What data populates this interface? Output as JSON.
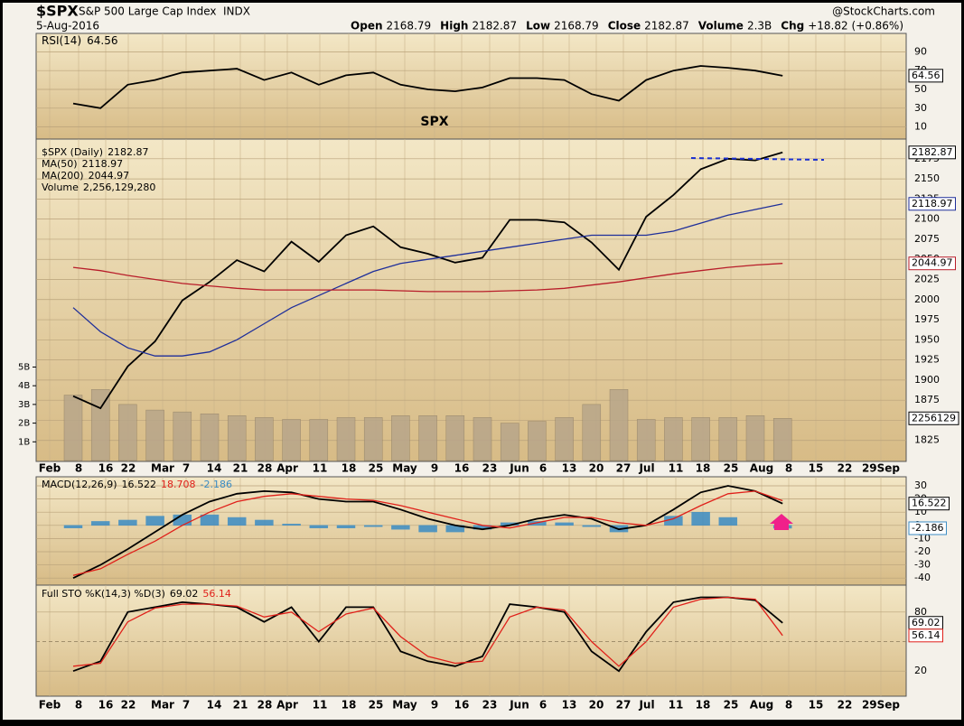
{
  "header": {
    "symbol": "$SPX",
    "name": "S&P 500 Large Cap Index",
    "exchange": "INDX",
    "date": "5-Aug-2016",
    "source": "@StockCharts.com",
    "stats": [
      {
        "label": "Open",
        "value": "2168.79"
      },
      {
        "label": "High",
        "value": "2182.87"
      },
      {
        "label": "Low",
        "value": "2168.79"
      },
      {
        "label": "Close",
        "value": "2182.87"
      },
      {
        "label": "Volume",
        "value": "2.3B"
      },
      {
        "label": "Chg",
        "value": "+18.82 (+0.86%)"
      }
    ]
  },
  "x_axis_labels": [
    "Feb",
    "8",
    "16",
    "22",
    "Mar",
    "7",
    "14",
    "21",
    "28",
    "Apr",
    "11",
    "18",
    "25",
    "May",
    "9",
    "16",
    "23",
    "Jun",
    "6",
    "13",
    "20",
    "27",
    "Jul",
    "11",
    "18",
    "25",
    "Aug",
    "8",
    "15",
    "22",
    "29Sep"
  ],
  "chart_data": [
    {
      "type": "line",
      "annotation": "SPX",
      "ylim": [
        0,
        100
      ],
      "yticks": [
        90,
        70,
        50,
        30,
        10
      ],
      "grid": true,
      "series": [
        {
          "name": "RSI(14)",
          "color": "#000000",
          "values": [
            35,
            30,
            55,
            60,
            68,
            70,
            72,
            60,
            68,
            55,
            65,
            68,
            55,
            50,
            48,
            52,
            62,
            62,
            60,
            45,
            38,
            60,
            70,
            75,
            73,
            70,
            64.56
          ]
        }
      ]
    },
    {
      "type": "line",
      "ylim": [
        1800,
        2195
      ],
      "yticks": [
        2175,
        2150,
        2125,
        2100,
        2075,
        2050,
        2025,
        2000,
        1975,
        1950,
        1925,
        1900,
        1875,
        1850,
        1825
      ],
      "grid": true,
      "y2lim": [
        0,
        17000000000
      ],
      "y2ticks": [
        {
          "value": 5000000000,
          "label": "5B"
        },
        {
          "value": 4000000000,
          "label": "4B"
        },
        {
          "value": 3000000000,
          "label": "3B"
        },
        {
          "value": 2000000000,
          "label": "2B"
        },
        {
          "value": 1000000000,
          "label": "1B"
        }
      ],
      "series": [
        {
          "name": "$SPX (Daily)",
          "color": "#000000",
          "values": [
            1880,
            1865,
            1917,
            1948,
            1999,
            2022,
            2049,
            2035,
            2072,
            2047,
            2080,
            2091,
            2065,
            2057,
            2046,
            2052,
            2099,
            2099,
            2096,
            2071,
            2037,
            2103,
            2130,
            2162,
            2175,
            2173,
            2182.87
          ]
        },
        {
          "name": "MA(50)",
          "color": "#1f2f9a",
          "values": [
            1990,
            1960,
            1940,
            1930,
            1930,
            1935,
            1950,
            1970,
            1990,
            2005,
            2020,
            2035,
            2045,
            2050,
            2055,
            2060,
            2065,
            2070,
            2075,
            2080,
            2080,
            2080,
            2085,
            2095,
            2105,
            2112,
            2118.97
          ]
        },
        {
          "name": "MA(200)",
          "color": "#b81d2a",
          "values": [
            2040,
            2036,
            2030,
            2025,
            2020,
            2017,
            2014,
            2012,
            2012,
            2012,
            2012,
            2012,
            2011,
            2010,
            2010,
            2010,
            2011,
            2012,
            2014,
            2018,
            2022,
            2027,
            2032,
            2036,
            2040,
            2043,
            2044.97
          ]
        },
        {
          "name": "Volume",
          "type": "bar",
          "axis": "y2",
          "color": "#b8a68a",
          "legend_label": "2,256,129,280",
          "last_label": "2256129",
          "values": [
            3500000000,
            3800000000,
            3000000000,
            2700000000,
            2600000000,
            2500000000,
            2400000000,
            2300000000,
            2200000000,
            2200000000,
            2300000000,
            2300000000,
            2400000000,
            2400000000,
            2400000000,
            2300000000,
            2000000000,
            2100000000,
            2300000000,
            3000000000,
            3800000000,
            2200000000,
            2300000000,
            2300000000,
            2300000000,
            2400000000,
            2256129280
          ]
        }
      ]
    },
    {
      "type": "line",
      "title": "MACD(12,26,9)",
      "ylim": [
        -44,
        35.5
      ],
      "yticks": [
        30,
        20,
        10,
        0,
        -10,
        -20,
        -30,
        -40
      ],
      "grid": true,
      "series": [
        {
          "name": "MACD",
          "color": "#000000",
          "values": [
            -40,
            -30,
            -18,
            -5,
            8,
            18,
            24,
            26,
            25,
            20,
            18,
            18,
            12,
            5,
            0,
            -3,
            0,
            5,
            8,
            5,
            -3,
            0,
            12,
            25,
            30,
            26,
            16.522
          ]
        },
        {
          "name": "Signal",
          "color": "#e0201a",
          "values": [
            -38,
            -33,
            -22,
            -12,
            0,
            10,
            18,
            22,
            24,
            22,
            20,
            19,
            15,
            10,
            5,
            0,
            -2,
            2,
            6,
            6,
            2,
            0,
            5,
            15,
            24,
            26,
            18.708
          ]
        },
        {
          "name": "Histogram",
          "type": "bar",
          "color": "#3b8cc4",
          "values": [
            -2,
            3,
            4,
            7,
            8,
            8,
            6,
            4,
            1,
            -2,
            -2,
            -1,
            -3,
            -5,
            -5,
            -3,
            2,
            3,
            2,
            -1,
            -5,
            0,
            7,
            10,
            6,
            0,
            -2.186
          ]
        }
      ]
    },
    {
      "type": "line",
      "title": "Full STO %K(14,3) %D(3)",
      "ylim": [
        0,
        100
      ],
      "yticks": [
        80,
        20
      ],
      "grid": true,
      "series": [
        {
          "name": "%K",
          "color": "#000000",
          "values": [
            20,
            30,
            80,
            85,
            90,
            88,
            85,
            70,
            85,
            50,
            85,
            85,
            40,
            30,
            25,
            35,
            88,
            85,
            80,
            40,
            20,
            60,
            90,
            95,
            95,
            92,
            69.02
          ]
        },
        {
          "name": "%D",
          "color": "#e0201a",
          "values": [
            25,
            28,
            70,
            84,
            88,
            88,
            86,
            75,
            80,
            60,
            78,
            84,
            55,
            35,
            28,
            30,
            75,
            85,
            82,
            50,
            25,
            50,
            85,
            93,
            95,
            93,
            56.14
          ]
        }
      ]
    }
  ]
}
